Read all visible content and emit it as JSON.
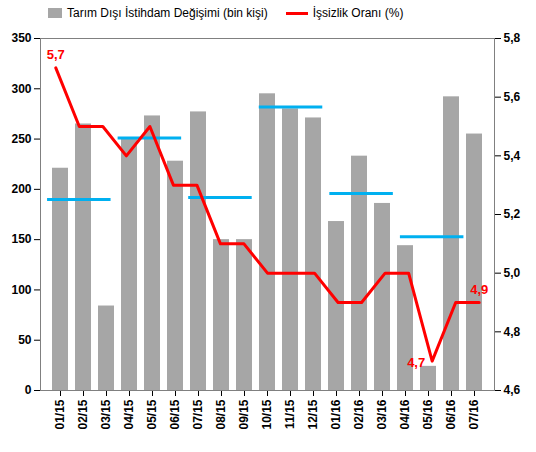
{
  "chart_data": {
    "type": "bar",
    "categories": [
      "01/15",
      "02/15",
      "03/15",
      "04/15",
      "05/15",
      "06/15",
      "07/15",
      "08/15",
      "09/15",
      "10/15",
      "11/15",
      "12/15",
      "01/16",
      "02/16",
      "03/16",
      "04/16",
      "05/16",
      "06/16",
      "07/16"
    ],
    "series": [
      {
        "name": "Tarım Dışı İstihdam Değişimi (bin kişi)",
        "type": "bar",
        "color": "#a6a6a6",
        "values": [
          221,
          265,
          84,
          251,
          273,
          228,
          277,
          150,
          150,
          295,
          280,
          271,
          168,
          233,
          186,
          144,
          24,
          292,
          255
        ]
      },
      {
        "name": "İşsizlik Oranı (%)",
        "type": "line",
        "axis": "y2",
        "color": "#ff0000",
        "data_labels": true,
        "values": [
          5.7,
          5.5,
          5.5,
          5.4,
          5.5,
          5.3,
          5.3,
          5.1,
          5.1,
          5.0,
          5.0,
          5.0,
          4.9,
          4.9,
          5.0,
          5.0,
          4.7,
          4.9,
          4.9
        ],
        "value_labels": [
          "5,7",
          null,
          null,
          null,
          null,
          null,
          null,
          null,
          null,
          null,
          null,
          null,
          null,
          null,
          null,
          null,
          "4,7",
          null,
          "4,9"
        ]
      }
    ],
    "quarter_means": {
      "color": "#00b0f0",
      "segments": [
        {
          "from": "01/15",
          "to": "03/15",
          "value": 190
        },
        {
          "from": "04/15",
          "to": "06/15",
          "value": 251
        },
        {
          "from": "07/15",
          "to": "09/15",
          "value": 192
        },
        {
          "from": "10/15",
          "to": "12/15",
          "value": 282
        },
        {
          "from": "01/16",
          "to": "03/16",
          "value": 196
        },
        {
          "from": "04/16",
          "to": "06/16",
          "value": 153
        }
      ]
    },
    "ylim": [
      0,
      350
    ],
    "yticks": [
      0,
      50,
      100,
      150,
      200,
      250,
      300,
      350
    ],
    "y2lim": [
      4.6,
      5.8
    ],
    "y2ticks": [
      {
        "value": 4.6,
        "label": "4,6"
      },
      {
        "value": 4.8,
        "label": "4,8"
      },
      {
        "value": 5.0,
        "label": "5,0"
      },
      {
        "value": 5.2,
        "label": "5,2"
      },
      {
        "value": 5.4,
        "label": "5,4"
      },
      {
        "value": 5.6,
        "label": "5,6"
      },
      {
        "value": 5.8,
        "label": "5,8"
      }
    ],
    "legend": "top",
    "grid": false
  }
}
